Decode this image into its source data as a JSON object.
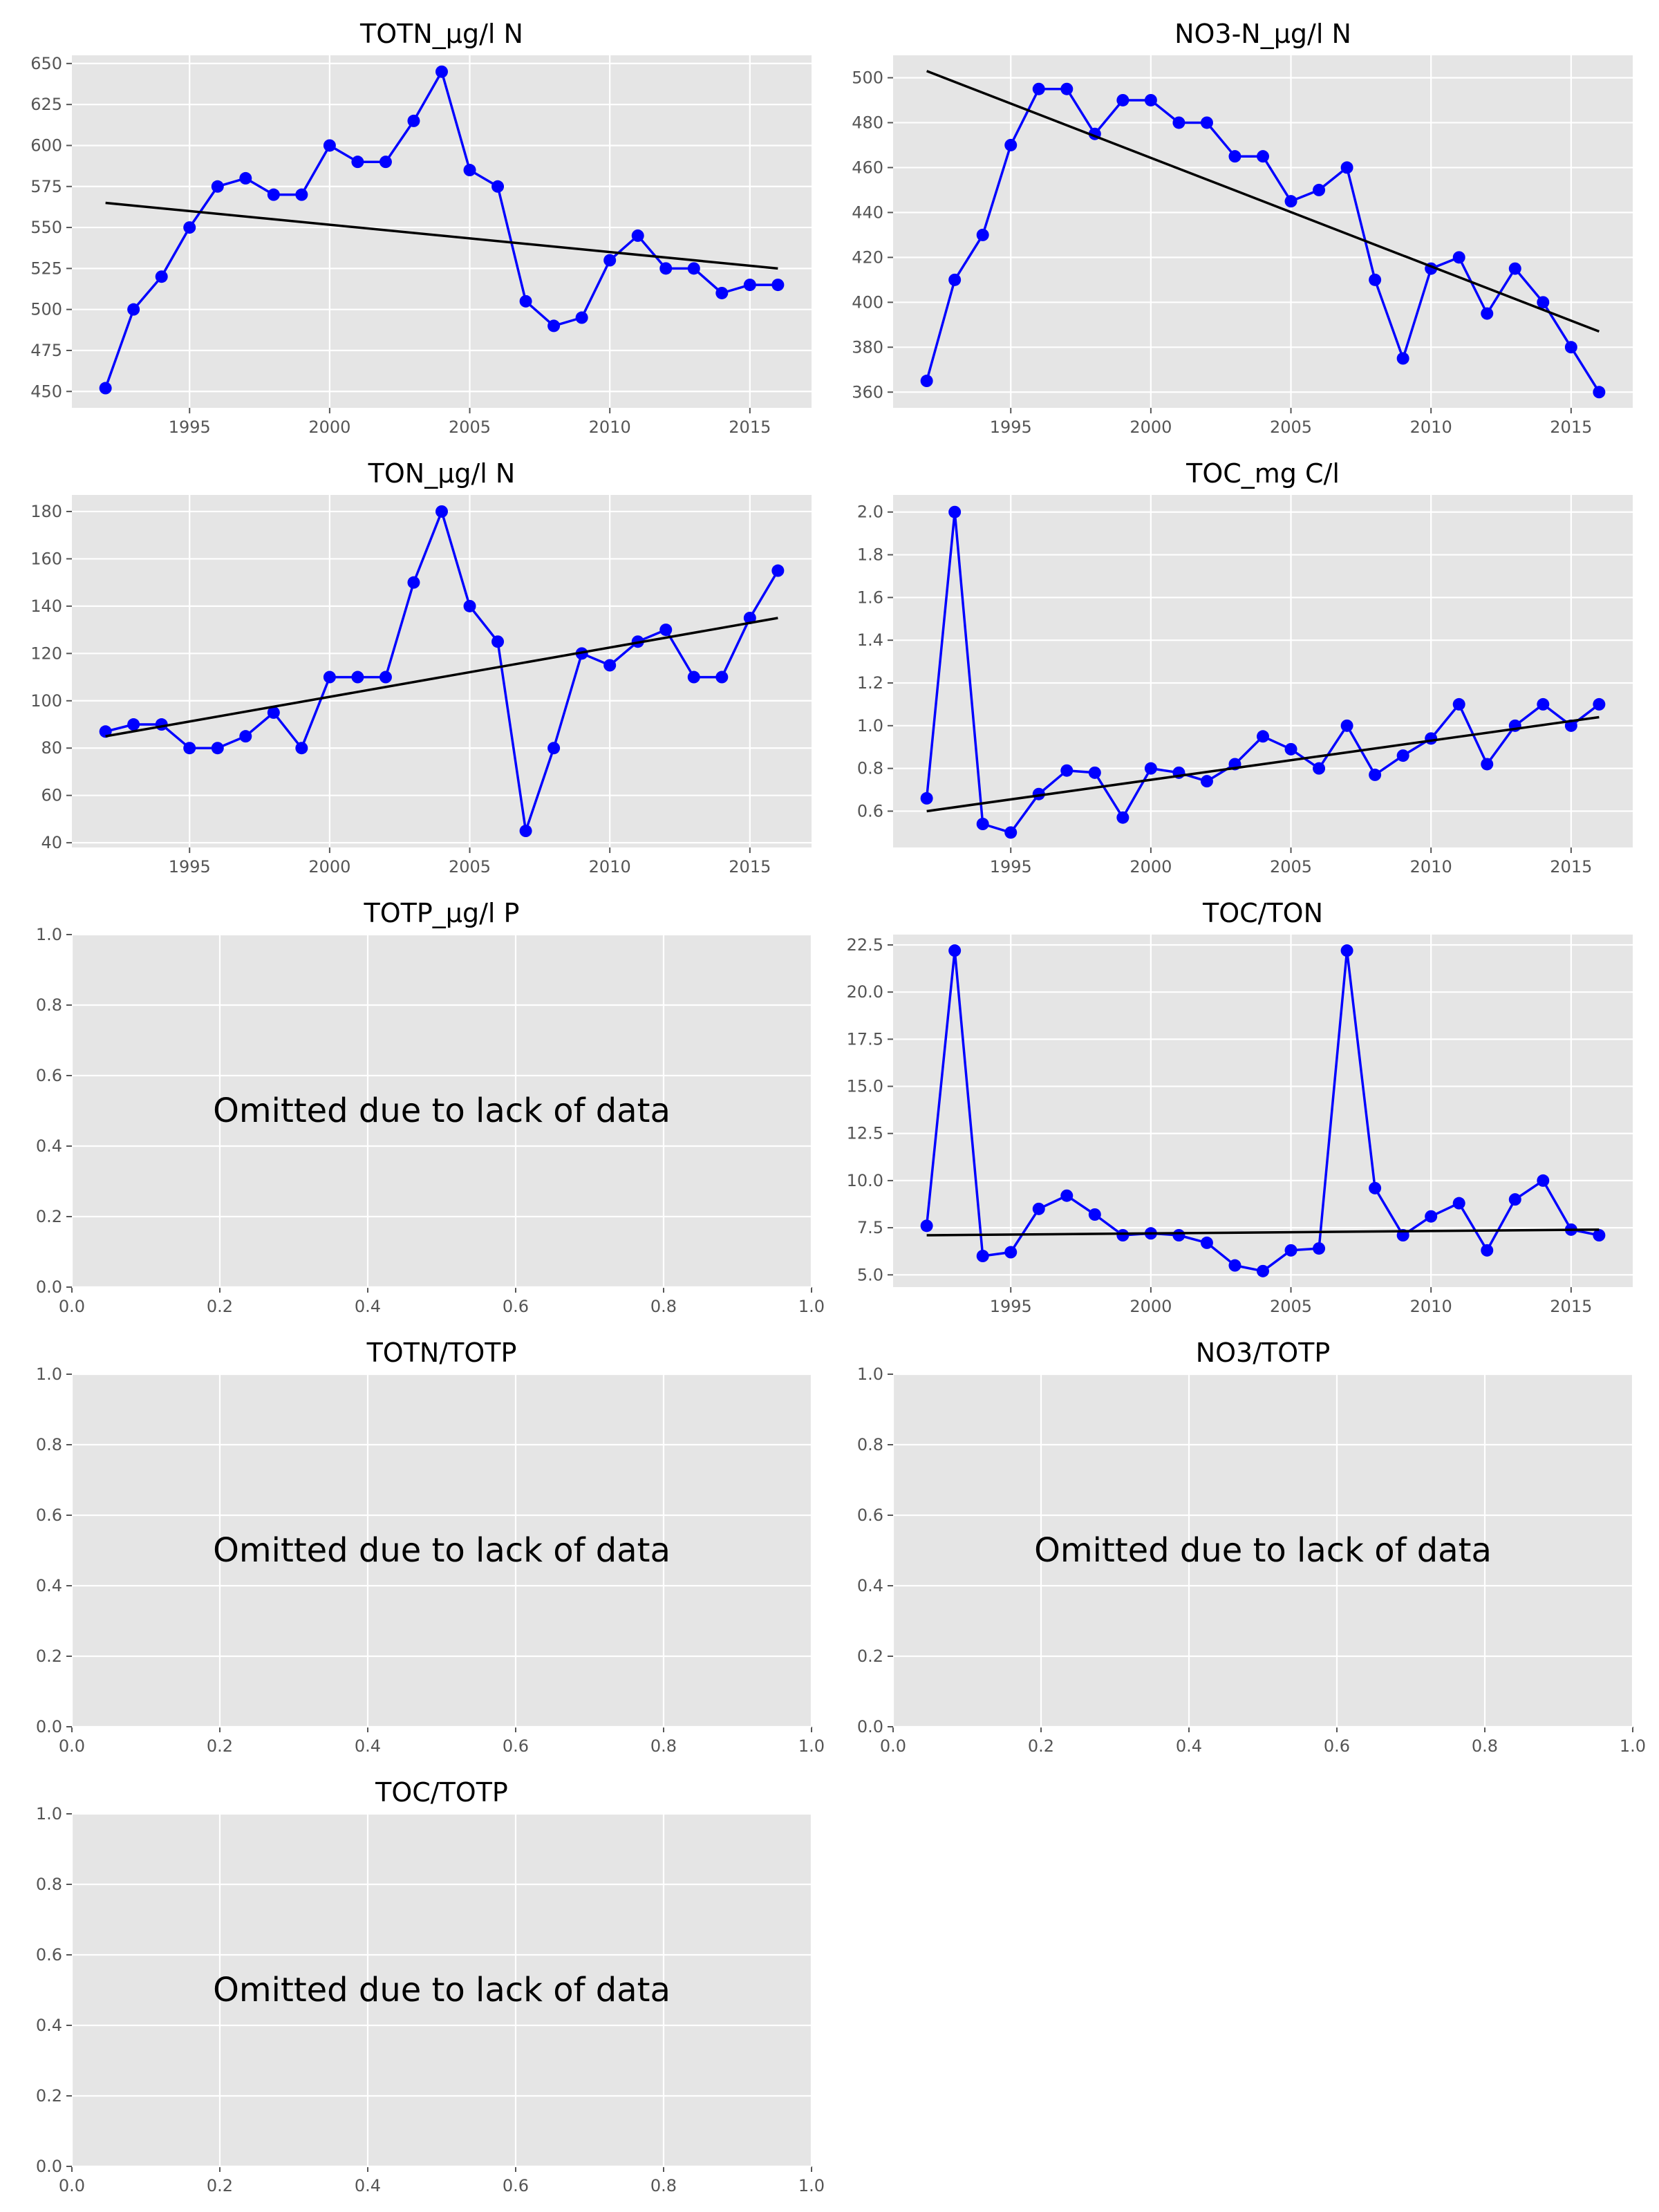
{
  "colors": {
    "series": "#0000ff",
    "trend": "#000000",
    "panel_background": "#e5e5e5",
    "grid": "#ffffff"
  },
  "chart_data": [
    {
      "type": "line",
      "title": "TOTN_µg/l N",
      "grid": true,
      "x": [
        1992,
        1993,
        1994,
        1995,
        1996,
        1997,
        1998,
        1999,
        2000,
        2001,
        2002,
        2003,
        2004,
        2005,
        2006,
        2007,
        2008,
        2009,
        2010,
        2011,
        2012,
        2013,
        2014,
        2015,
        2016
      ],
      "series": [
        {
          "values": [
            452,
            500,
            520,
            550,
            575,
            580,
            570,
            570,
            600,
            590,
            590,
            615,
            645,
            585,
            575,
            505,
            490,
            495,
            530,
            545,
            525,
            525,
            510,
            515,
            515
          ]
        }
      ],
      "trend": {
        "x": [
          1992,
          2016
        ],
        "y": [
          565,
          525
        ]
      },
      "xlim": [
        1990.8,
        2017.2
      ],
      "ylim": [
        440,
        655
      ],
      "xticks": [
        "1995",
        "2000",
        "2005",
        "2010",
        "2015"
      ],
      "yticks": [
        "450",
        "475",
        "500",
        "525",
        "550",
        "575",
        "600",
        "625",
        "650"
      ]
    },
    {
      "type": "line",
      "title": "NO3-N_µg/l N",
      "grid": true,
      "x": [
        1992,
        1993,
        1994,
        1995,
        1996,
        1997,
        1998,
        1999,
        2000,
        2001,
        2002,
        2003,
        2004,
        2005,
        2006,
        2007,
        2008,
        2009,
        2010,
        2011,
        2012,
        2013,
        2014,
        2015,
        2016
      ],
      "series": [
        {
          "values": [
            365,
            410,
            430,
            470,
            495,
            495,
            475,
            490,
            490,
            480,
            480,
            465,
            465,
            445,
            450,
            460,
            410,
            375,
            415,
            420,
            395,
            415,
            400,
            380,
            360
          ]
        }
      ],
      "trend": {
        "x": [
          1992,
          2016
        ],
        "y": [
          503,
          387
        ]
      },
      "xlim": [
        1990.8,
        2017.2
      ],
      "ylim": [
        353,
        510
      ],
      "xticks": [
        "1995",
        "2000",
        "2005",
        "2010",
        "2015"
      ],
      "yticks": [
        "360",
        "380",
        "400",
        "420",
        "440",
        "460",
        "480",
        "500"
      ]
    },
    {
      "type": "line",
      "title": "TON_µg/l N",
      "grid": true,
      "x": [
        1992,
        1993,
        1994,
        1995,
        1996,
        1997,
        1998,
        1999,
        2000,
        2001,
        2002,
        2003,
        2004,
        2005,
        2006,
        2007,
        2008,
        2009,
        2010,
        2011,
        2012,
        2013,
        2014,
        2015,
        2016
      ],
      "series": [
        {
          "values": [
            87,
            90,
            90,
            80,
            80,
            85,
            95,
            80,
            110,
            110,
            110,
            150,
            180,
            140,
            125,
            45,
            80,
            120,
            115,
            125,
            130,
            110,
            110,
            135,
            155
          ]
        }
      ],
      "trend": {
        "x": [
          1992,
          2016
        ],
        "y": [
          85,
          135
        ]
      },
      "xlim": [
        1990.8,
        2017.2
      ],
      "ylim": [
        38,
        187
      ],
      "xticks": [
        "1995",
        "2000",
        "2005",
        "2010",
        "2015"
      ],
      "yticks": [
        "40",
        "60",
        "80",
        "100",
        "120",
        "140",
        "160",
        "180"
      ]
    },
    {
      "type": "line",
      "title": "TOC_mg C/l",
      "grid": true,
      "x": [
        1992,
        1993,
        1994,
        1995,
        1996,
        1997,
        1998,
        1999,
        2000,
        2001,
        2002,
        2003,
        2004,
        2005,
        2006,
        2007,
        2008,
        2009,
        2010,
        2011,
        2012,
        2013,
        2014,
        2015,
        2016
      ],
      "series": [
        {
          "values": [
            0.66,
            2.0,
            0.54,
            0.5,
            0.68,
            0.79,
            0.78,
            0.57,
            0.8,
            0.78,
            0.74,
            0.82,
            0.95,
            0.89,
            0.8,
            1.0,
            0.77,
            0.86,
            0.94,
            1.1,
            0.82,
            1.0,
            1.1,
            1.0,
            1.1
          ]
        }
      ],
      "trend": {
        "x": [
          1992,
          2016
        ],
        "y": [
          0.6,
          1.04
        ]
      },
      "xlim": [
        1990.8,
        2017.2
      ],
      "ylim": [
        0.43,
        2.08
      ],
      "xticks": [
        "1995",
        "2000",
        "2005",
        "2010",
        "2015"
      ],
      "yticks": [
        "0.6",
        "0.8",
        "1.0",
        "1.2",
        "1.4",
        "1.6",
        "1.8",
        "2.0"
      ]
    },
    {
      "type": "line",
      "title": "TOTP_µg/l P",
      "grid": true,
      "note": "Omitted due to lack of data",
      "xlim": [
        0,
        1
      ],
      "ylim": [
        0,
        1
      ],
      "xticks": [
        "0.0",
        "0.2",
        "0.4",
        "0.6",
        "0.8",
        "1.0"
      ],
      "yticks": [
        "0.0",
        "0.2",
        "0.4",
        "0.6",
        "0.8",
        "1.0"
      ]
    },
    {
      "type": "line",
      "title": "TOC/TON",
      "grid": true,
      "x": [
        1992,
        1993,
        1994,
        1995,
        1996,
        1997,
        1998,
        1999,
        2000,
        2001,
        2002,
        2003,
        2004,
        2005,
        2006,
        2007,
        2008,
        2009,
        2010,
        2011,
        2012,
        2013,
        2014,
        2015,
        2016
      ],
      "series": [
        {
          "values": [
            7.6,
            22.2,
            6.0,
            6.2,
            8.5,
            9.2,
            8.2,
            7.1,
            7.2,
            7.1,
            6.7,
            5.5,
            5.2,
            6.3,
            6.4,
            22.2,
            9.6,
            7.1,
            8.1,
            8.8,
            6.3,
            9.0,
            10.0,
            7.4,
            7.1
          ]
        }
      ],
      "trend": {
        "x": [
          1992,
          2016
        ],
        "y": [
          7.1,
          7.4
        ]
      },
      "xlim": [
        1990.8,
        2017.2
      ],
      "ylim": [
        4.35,
        23.05
      ],
      "xticks": [
        "1995",
        "2000",
        "2005",
        "2010",
        "2015"
      ],
      "yticks": [
        "5.0",
        "7.5",
        "10.0",
        "12.5",
        "15.0",
        "17.5",
        "20.0",
        "22.5"
      ]
    },
    {
      "type": "line",
      "title": "TOTN/TOTP",
      "grid": true,
      "note": "Omitted due to lack of data",
      "xlim": [
        0,
        1
      ],
      "ylim": [
        0,
        1
      ],
      "xticks": [
        "0.0",
        "0.2",
        "0.4",
        "0.6",
        "0.8",
        "1.0"
      ],
      "yticks": [
        "0.0",
        "0.2",
        "0.4",
        "0.6",
        "0.8",
        "1.0"
      ]
    },
    {
      "type": "line",
      "title": "NO3/TOTP",
      "grid": true,
      "note": "Omitted due to lack of data",
      "xlim": [
        0,
        1
      ],
      "ylim": [
        0,
        1
      ],
      "xticks": [
        "0.0",
        "0.2",
        "0.4",
        "0.6",
        "0.8",
        "1.0"
      ],
      "yticks": [
        "0.0",
        "0.2",
        "0.4",
        "0.6",
        "0.8",
        "1.0"
      ]
    },
    {
      "type": "line",
      "title": "TOC/TOTP",
      "grid": true,
      "note": "Omitted due to lack of data",
      "xlim": [
        0,
        1
      ],
      "ylim": [
        0,
        1
      ],
      "xticks": [
        "0.0",
        "0.2",
        "0.4",
        "0.6",
        "0.8",
        "1.0"
      ],
      "yticks": [
        "0.0",
        "0.2",
        "0.4",
        "0.6",
        "0.8",
        "1.0"
      ]
    }
  ]
}
